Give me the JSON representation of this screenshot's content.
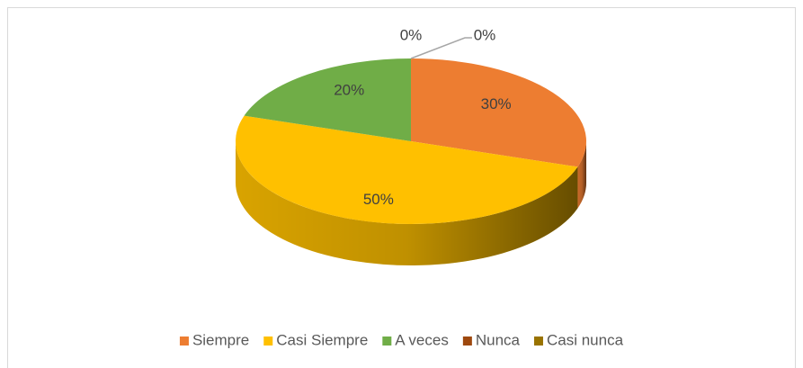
{
  "chart_data": {
    "type": "pie",
    "categories": [
      "Siempre",
      "Casi Siempre",
      "A veces",
      "Nunca",
      "Casi nunca"
    ],
    "values": [
      30,
      50,
      20,
      0,
      0
    ],
    "value_labels": [
      "30%",
      "50%",
      "20%",
      "0%",
      "0%"
    ],
    "colors": [
      "#ed7d31",
      "#ffc000",
      "#70ad47",
      "#9e480e",
      "#997300"
    ],
    "legend": "bottom"
  }
}
